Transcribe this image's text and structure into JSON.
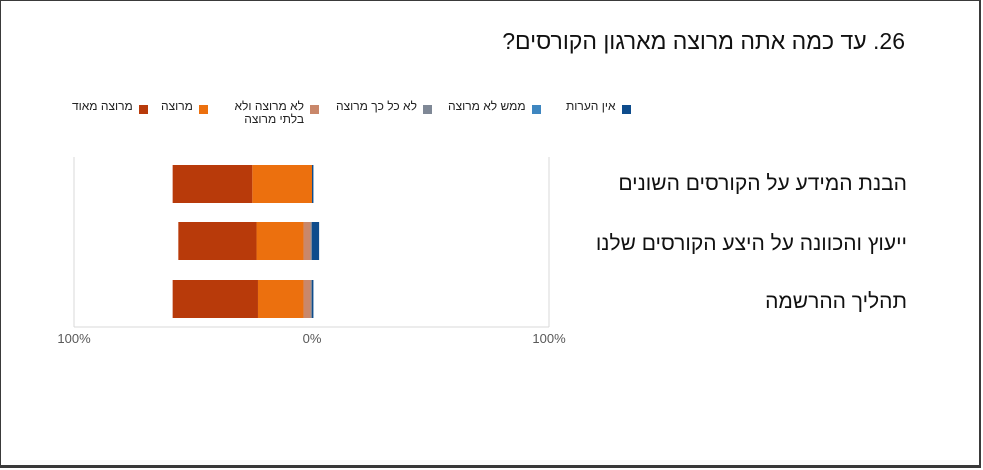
{
  "title": "26. עד כמה אתה מרוצה מארגון הקורסים?",
  "chart_data": {
    "type": "bar",
    "orientation": "horizontal-diverging-stacked",
    "categories": [
      "הבנת המידע על הקורסים השונים",
      "ייעוץ והכוונה על היצע הקורסים שלנו",
      "תהליך ההרשמה"
    ],
    "series": [
      {
        "name": "מרוצה מאוד",
        "color": "#B83A0A",
        "values": [
          56,
          55,
          60
        ]
      },
      {
        "name": "מרוצה",
        "color": "#EC700E",
        "values": [
          42,
          33,
          32
        ]
      },
      {
        "name": "לא מרוצה ולא בלתי מרוצה",
        "color": "#C9876A",
        "values": [
          0,
          5,
          5
        ]
      },
      {
        "name": "לא כל כך מרוצה",
        "color": "#7F8896",
        "values": [
          0,
          1,
          1
        ]
      },
      {
        "name": "ממש לא מרוצה",
        "color": "#3E86C0",
        "values": [
          0,
          0,
          0
        ]
      },
      {
        "name": "אין הערות",
        "color": "#0E4C8C",
        "values": [
          1,
          5,
          1
        ]
      }
    ],
    "x_ticks": [
      "100%",
      "0%",
      "100%"
    ],
    "xlim": [
      -100,
      100
    ],
    "grid": true,
    "legend_position": "top"
  }
}
